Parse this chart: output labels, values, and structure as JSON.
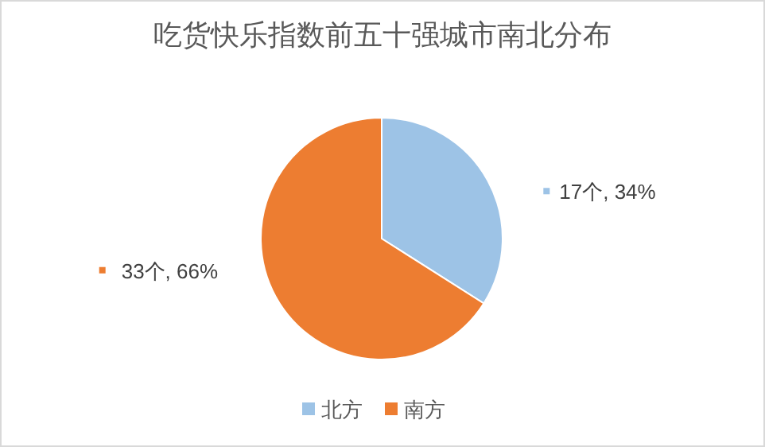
{
  "chart_data": {
    "type": "pie",
    "title": "吃货快乐指数前五十强城市南北分布",
    "categories": [
      "北方",
      "南方"
    ],
    "values": [
      17,
      33
    ],
    "colors": [
      "#9dc3e6",
      "#ed7d31"
    ],
    "value_labels": [
      "17个, 34%",
      "33个, 66%"
    ],
    "legend": "bottom"
  }
}
